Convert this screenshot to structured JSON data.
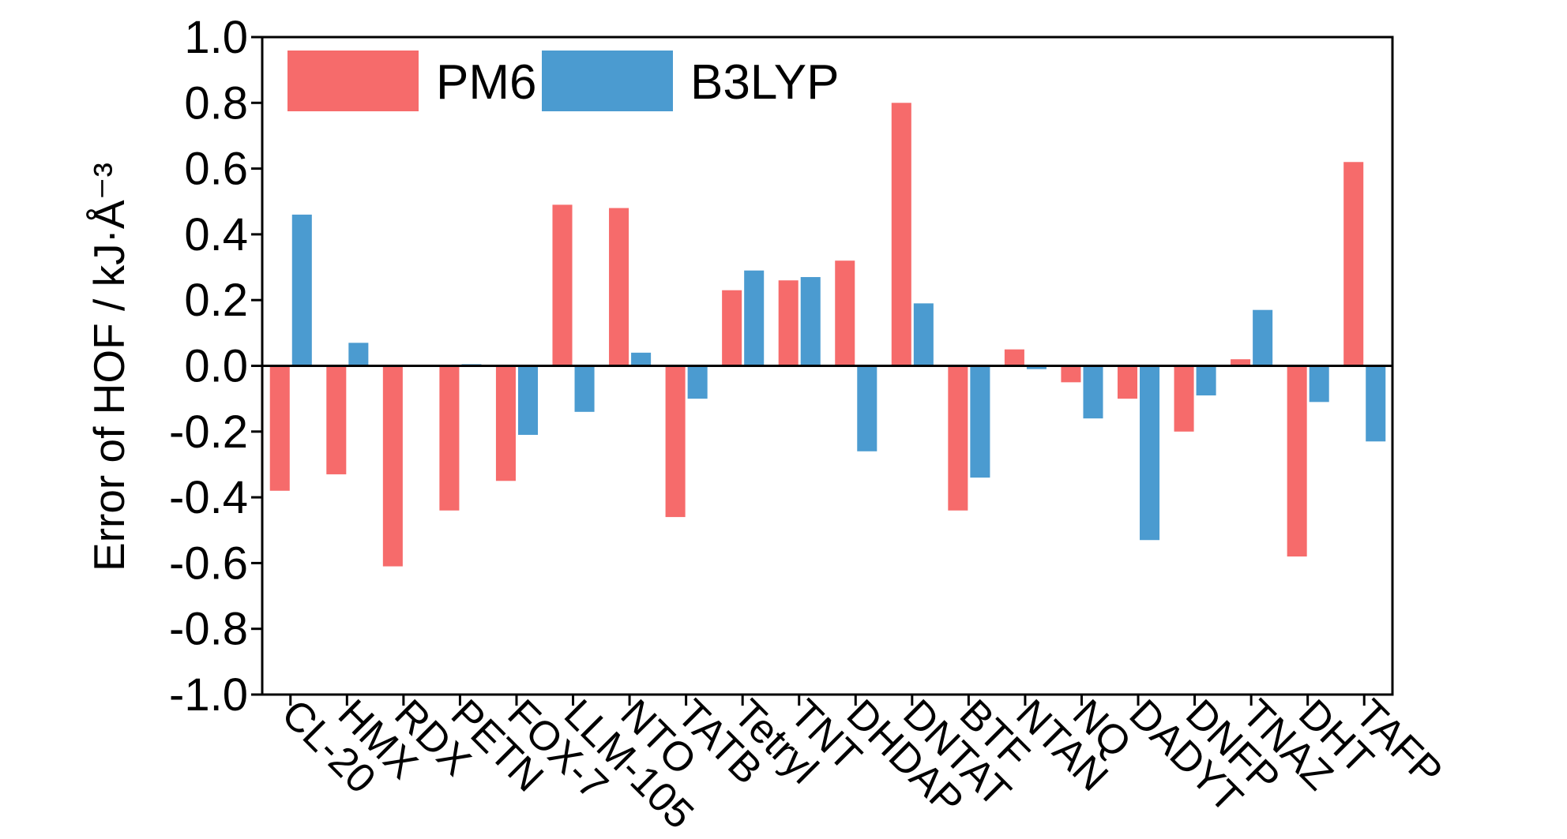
{
  "chart_data": {
    "type": "bar",
    "ylabel": "Error of HOF / kJ·Å⁻³",
    "categories": [
      "CL-20",
      "HMX",
      "RDX",
      "PETN",
      "FOX-7",
      "LLM-105",
      "NTO",
      "TATB",
      "Tetryl",
      "TNT",
      "DHDAP",
      "DNTAT",
      "BTF",
      "NTAN",
      "NQ",
      "DADYT",
      "DNFP",
      "TNAZ",
      "DHT",
      "TAFP"
    ],
    "series": [
      {
        "name": "PM6",
        "color": "#f66b6b",
        "values": [
          -0.38,
          -0.33,
          -0.61,
          -0.44,
          -0.35,
          0.49,
          0.48,
          -0.46,
          0.23,
          0.26,
          0.32,
          0.8,
          -0.44,
          0.05,
          -0.05,
          -0.1,
          -0.2,
          0.02,
          -0.58,
          0.62
        ]
      },
      {
        "name": "B3LYP",
        "color": "#4b9bd0",
        "values": [
          0.46,
          0.07,
          0,
          0.005,
          -0.21,
          -0.14,
          0.04,
          -0.1,
          0.29,
          0.27,
          -0.26,
          0.19,
          -0.34,
          -0.01,
          -0.16,
          -0.53,
          -0.09,
          0.17,
          -0.11,
          -0.23
        ]
      }
    ],
    "ylim": [
      -1.0,
      1.0
    ],
    "yticks": [
      {
        "value": -1.0,
        "label": "-1.0"
      },
      {
        "value": -0.8,
        "label": "-0.8"
      },
      {
        "value": -0.6,
        "label": "-0.6"
      },
      {
        "value": -0.4,
        "label": "-0.4"
      },
      {
        "value": -0.2,
        "label": "-0.2"
      },
      {
        "value": 0,
        "label": "0.0"
      },
      {
        "value": 0.2,
        "label": "0.2"
      },
      {
        "value": 0.4,
        "label": "0.4"
      },
      {
        "value": 0.6,
        "label": "0.6"
      },
      {
        "value": 0.8,
        "label": "0.8"
      },
      {
        "value": 1.0,
        "label": "1.0"
      }
    ],
    "legend": "top-left"
  }
}
